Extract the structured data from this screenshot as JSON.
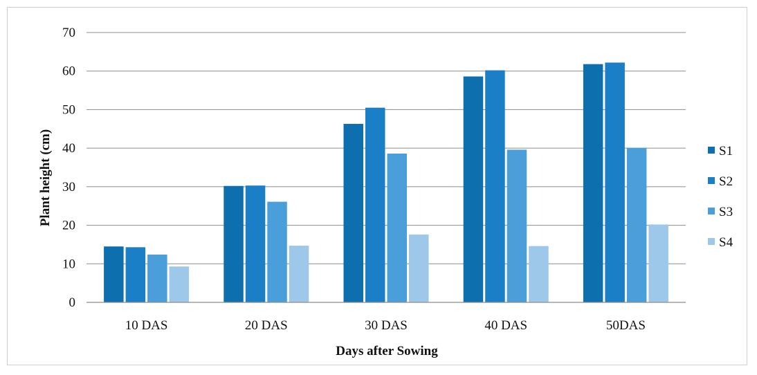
{
  "chart_data": {
    "type": "bar",
    "title": "",
    "xlabel": "Days after Sowing",
    "ylabel": "Plant height (cm)",
    "ylim": [
      0,
      70
    ],
    "yticks": [
      0,
      10,
      20,
      30,
      40,
      50,
      60,
      70
    ],
    "grid": "horizontal",
    "legend_position": "right",
    "categories": [
      "10 DAS",
      "20 DAS",
      "30 DAS",
      "40 DAS",
      "50DAS"
    ],
    "series": [
      {
        "name": "S1",
        "color": "#0e6fae",
        "values": [
          14.5,
          30.2,
          46.3,
          58.6,
          61.8
        ]
      },
      {
        "name": "S2",
        "color": "#1a7fc6",
        "values": [
          14.3,
          30.3,
          50.5,
          60.2,
          62.2
        ]
      },
      {
        "name": "S3",
        "color": "#4a9fdb",
        "values": [
          12.4,
          26.1,
          38.6,
          39.6,
          40.1
        ]
      },
      {
        "name": "S4",
        "color": "#9ec8ea",
        "values": [
          9.3,
          14.7,
          17.6,
          14.6,
          20.2
        ]
      }
    ]
  }
}
